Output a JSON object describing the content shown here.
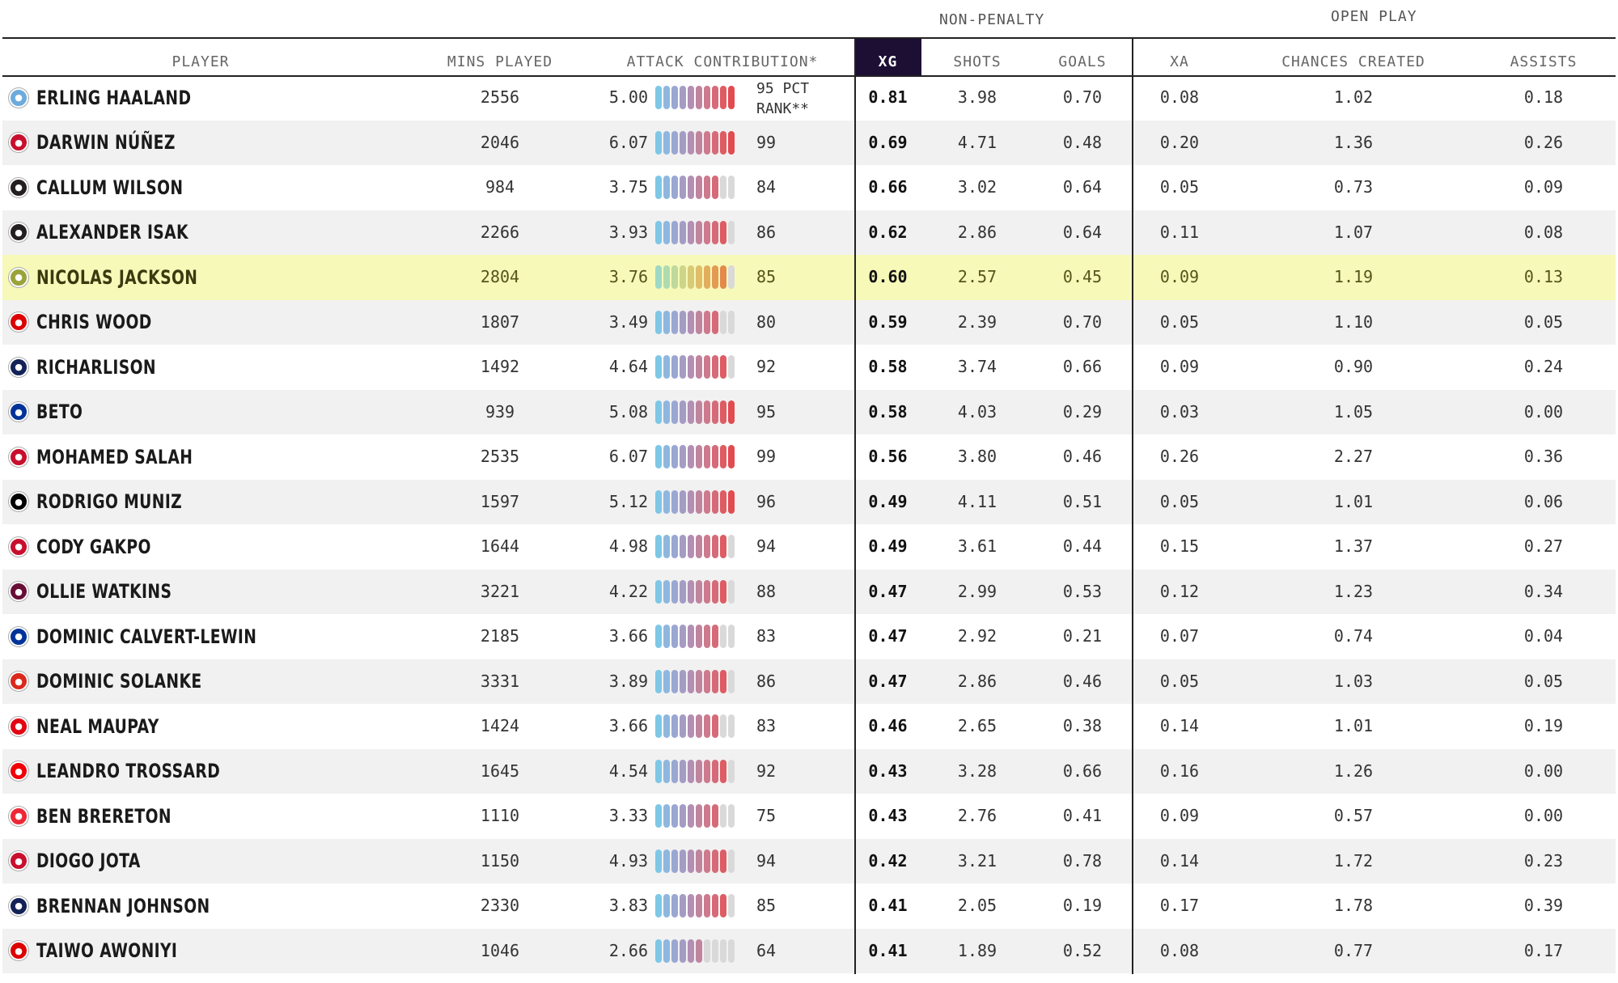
{
  "groups": {
    "non_penalty": "NON-PENALTY",
    "open_play": "OPEN PLAY"
  },
  "headers": {
    "player": "PLAYER",
    "mins": "MINS PLAYED",
    "attack": "ATTACK CONTRIBUTION*",
    "xg": "XG",
    "shots": "SHOTS",
    "goals": "GOALS",
    "xa": "XA",
    "chances": "CHANCES CREATED",
    "assists": "ASSISTS"
  },
  "pct_rank_label": "95 PCT RANK**",
  "pct_rank_line1": "95 PCT",
  "pct_rank_line2": "RANK**",
  "colors": {
    "header_dark": "#1c0f33",
    "highlight_row": "#f7f9b8",
    "bar_empty": "#d9d9d9",
    "bar_gradient": [
      "#7ec7e6",
      "#8fb7de",
      "#9aa7d2",
      "#a59cc4",
      "#b28fb3",
      "#c0849f",
      "#cc7a8c",
      "#d66b78",
      "#de5c63",
      "#e24b4f"
    ],
    "highlight_bar_gradient": [
      "#9ed9c6",
      "#aedbb0",
      "#bed99b",
      "#cdd588",
      "#d8cb77",
      "#dfbd69",
      "#e2ad5d",
      "#e39b54",
      "#e28a4c",
      "#dd7a46"
    ]
  },
  "rows": [
    {
      "player": "ERLING HAALAND",
      "crest": "crest-man-city-icon",
      "crest_color": "#6cabdd",
      "mins": "2556",
      "attack": "5.00",
      "pct": "95",
      "xg": "0.81",
      "shots": "3.98",
      "goals": "0.70",
      "xa": "0.08",
      "chances": "1.02",
      "assists": "0.18"
    },
    {
      "player": "DARWIN NÚÑEZ",
      "crest": "crest-liverpool-icon",
      "crest_color": "#c8102e",
      "mins": "2046",
      "attack": "6.07",
      "pct": "99",
      "xg": "0.69",
      "shots": "4.71",
      "goals": "0.48",
      "xa": "0.20",
      "chances": "1.36",
      "assists": "0.26"
    },
    {
      "player": "CALLUM WILSON",
      "crest": "crest-newcastle-icon",
      "crest_color": "#241f20",
      "mins": "984",
      "attack": "3.75",
      "pct": "84",
      "xg": "0.66",
      "shots": "3.02",
      "goals": "0.64",
      "xa": "0.05",
      "chances": "0.73",
      "assists": "0.09"
    },
    {
      "player": "ALEXANDER ISAK",
      "crest": "crest-newcastle-icon",
      "crest_color": "#241f20",
      "mins": "2266",
      "attack": "3.93",
      "pct": "86",
      "xg": "0.62",
      "shots": "2.86",
      "goals": "0.64",
      "xa": "0.11",
      "chances": "1.07",
      "assists": "0.08"
    },
    {
      "player": "NICOLAS JACKSON",
      "crest": "crest-chelsea-icon",
      "crest_color": "#9aa33a",
      "mins": "2804",
      "attack": "3.76",
      "pct": "85",
      "xg": "0.60",
      "shots": "2.57",
      "goals": "0.45",
      "xa": "0.09",
      "chances": "1.19",
      "assists": "0.13",
      "highlight": true
    },
    {
      "player": "CHRIS WOOD",
      "crest": "crest-nottingham-forest-icon",
      "crest_color": "#dd0000",
      "mins": "1807",
      "attack": "3.49",
      "pct": "80",
      "xg": "0.59",
      "shots": "2.39",
      "goals": "0.70",
      "xa": "0.05",
      "chances": "1.10",
      "assists": "0.05"
    },
    {
      "player": "RICHARLISON",
      "crest": "crest-tottenham-icon",
      "crest_color": "#132257",
      "mins": "1492",
      "attack": "4.64",
      "pct": "92",
      "xg": "0.58",
      "shots": "3.74",
      "goals": "0.66",
      "xa": "0.09",
      "chances": "0.90",
      "assists": "0.24"
    },
    {
      "player": "BETO",
      "crest": "crest-everton-icon",
      "crest_color": "#003399",
      "mins": "939",
      "attack": "5.08",
      "pct": "95",
      "xg": "0.58",
      "shots": "4.03",
      "goals": "0.29",
      "xa": "0.03",
      "chances": "1.05",
      "assists": "0.00"
    },
    {
      "player": "MOHAMED SALAH",
      "crest": "crest-liverpool-icon",
      "crest_color": "#c8102e",
      "mins": "2535",
      "attack": "6.07",
      "pct": "99",
      "xg": "0.56",
      "shots": "3.80",
      "goals": "0.46",
      "xa": "0.26",
      "chances": "2.27",
      "assists": "0.36"
    },
    {
      "player": "RODRIGO MUNIZ",
      "crest": "crest-fulham-icon",
      "crest_color": "#000000",
      "mins": "1597",
      "attack": "5.12",
      "pct": "96",
      "xg": "0.49",
      "shots": "4.11",
      "goals": "0.51",
      "xa": "0.05",
      "chances": "1.01",
      "assists": "0.06"
    },
    {
      "player": "CODY GAKPO",
      "crest": "crest-liverpool-icon",
      "crest_color": "#c8102e",
      "mins": "1644",
      "attack": "4.98",
      "pct": "94",
      "xg": "0.49",
      "shots": "3.61",
      "goals": "0.44",
      "xa": "0.15",
      "chances": "1.37",
      "assists": "0.27"
    },
    {
      "player": "OLLIE WATKINS",
      "crest": "crest-aston-villa-icon",
      "crest_color": "#670e36",
      "mins": "3221",
      "attack": "4.22",
      "pct": "88",
      "xg": "0.47",
      "shots": "2.99",
      "goals": "0.53",
      "xa": "0.12",
      "chances": "1.23",
      "assists": "0.34"
    },
    {
      "player": "DOMINIC CALVERT-LEWIN",
      "crest": "crest-everton-icon",
      "crest_color": "#003399",
      "mins": "2185",
      "attack": "3.66",
      "pct": "83",
      "xg": "0.47",
      "shots": "2.92",
      "goals": "0.21",
      "xa": "0.07",
      "chances": "0.74",
      "assists": "0.04"
    },
    {
      "player": "DOMINIC SOLANKE",
      "crest": "crest-bournemouth-icon",
      "crest_color": "#da291c",
      "mins": "3331",
      "attack": "3.89",
      "pct": "86",
      "xg": "0.47",
      "shots": "2.86",
      "goals": "0.46",
      "xa": "0.05",
      "chances": "1.03",
      "assists": "0.05"
    },
    {
      "player": "NEAL MAUPAY",
      "crest": "crest-brentford-icon",
      "crest_color": "#e30613",
      "mins": "1424",
      "attack": "3.66",
      "pct": "83",
      "xg": "0.46",
      "shots": "2.65",
      "goals": "0.38",
      "xa": "0.14",
      "chances": "1.01",
      "assists": "0.19"
    },
    {
      "player": "LEANDRO TROSSARD",
      "crest": "crest-arsenal-icon",
      "crest_color": "#ef0107",
      "mins": "1645",
      "attack": "4.54",
      "pct": "92",
      "xg": "0.43",
      "shots": "3.28",
      "goals": "0.66",
      "xa": "0.16",
      "chances": "1.26",
      "assists": "0.00"
    },
    {
      "player": "BEN BRERETON",
      "crest": "crest-sheffield-united-icon",
      "crest_color": "#ee2737",
      "mins": "1110",
      "attack": "3.33",
      "pct": "75",
      "xg": "0.43",
      "shots": "2.76",
      "goals": "0.41",
      "xa": "0.09",
      "chances": "0.57",
      "assists": "0.00"
    },
    {
      "player": "DIOGO JOTA",
      "crest": "crest-liverpool-icon",
      "crest_color": "#c8102e",
      "mins": "1150",
      "attack": "4.93",
      "pct": "94",
      "xg": "0.42",
      "shots": "3.21",
      "goals": "0.78",
      "xa": "0.14",
      "chances": "1.72",
      "assists": "0.23"
    },
    {
      "player": "BRENNAN JOHNSON",
      "crest": "crest-tottenham-icon",
      "crest_color": "#132257",
      "mins": "2330",
      "attack": "3.83",
      "pct": "85",
      "xg": "0.41",
      "shots": "2.05",
      "goals": "0.19",
      "xa": "0.17",
      "chances": "1.78",
      "assists": "0.39"
    },
    {
      "player": "TAIWO AWONIYI",
      "crest": "crest-nottingham-forest-icon",
      "crest_color": "#dd0000",
      "mins": "1046",
      "attack": "2.66",
      "pct": "64",
      "xg": "0.41",
      "shots": "1.89",
      "goals": "0.52",
      "xa": "0.08",
      "chances": "0.77",
      "assists": "0.17"
    }
  ]
}
